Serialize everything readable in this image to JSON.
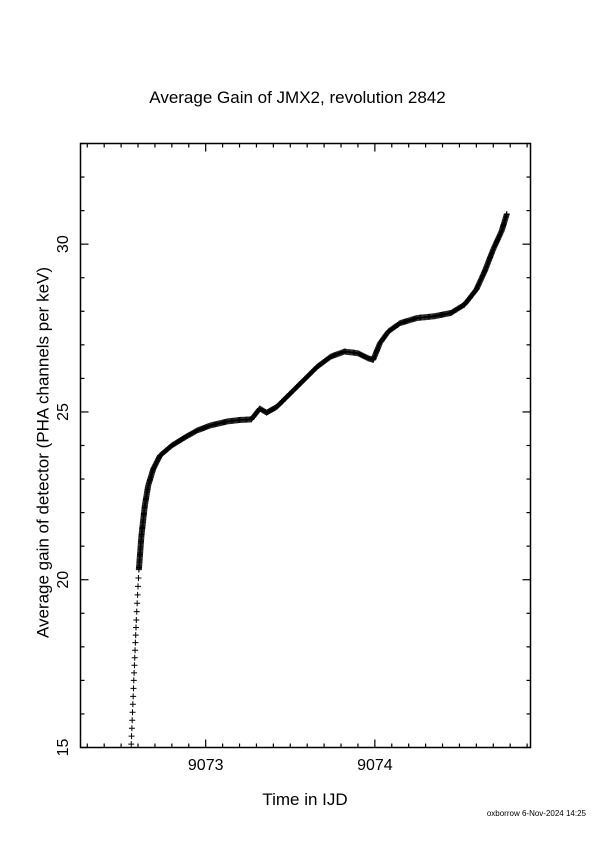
{
  "chart_data": {
    "type": "scatter",
    "title": "Average Gain of JMX2, revolution 2842",
    "xlabel": "Time in IJD",
    "ylabel": "Average gain of detector (PHA channels per keV)",
    "xlim": [
      9072.26,
      9074.92
    ],
    "ylim": [
      15,
      33
    ],
    "xticks": [
      9073,
      9074
    ],
    "yticks": [
      15,
      20,
      25,
      30
    ],
    "grid": false,
    "marker": "+",
    "marker_color": "#000000",
    "series": [
      {
        "points": [
          [
            9072.56,
            15.1
          ],
          [
            9072.575,
            17.0
          ],
          [
            9072.59,
            18.8
          ],
          [
            9072.605,
            20.3
          ],
          [
            9072.62,
            21.3
          ],
          [
            9072.64,
            22.2
          ],
          [
            9072.66,
            22.8
          ],
          [
            9072.69,
            23.3
          ],
          [
            9072.73,
            23.7
          ],
          [
            9072.8,
            24.0
          ],
          [
            9072.88,
            24.25
          ],
          [
            9072.95,
            24.45
          ],
          [
            9073.03,
            24.6
          ],
          [
            9073.13,
            24.72
          ],
          [
            9073.2,
            24.76
          ],
          [
            9073.27,
            24.78
          ],
          [
            9073.32,
            25.1
          ],
          [
            9073.36,
            24.98
          ],
          [
            9073.42,
            25.15
          ],
          [
            9073.5,
            25.55
          ],
          [
            9073.58,
            25.95
          ],
          [
            9073.66,
            26.35
          ],
          [
            9073.74,
            26.65
          ],
          [
            9073.82,
            26.8
          ],
          [
            9073.9,
            26.75
          ],
          [
            9073.96,
            26.6
          ],
          [
            9073.99,
            26.55
          ],
          [
            9074.03,
            27.05
          ],
          [
            9074.08,
            27.4
          ],
          [
            9074.15,
            27.65
          ],
          [
            9074.25,
            27.8
          ],
          [
            9074.35,
            27.85
          ],
          [
            9074.45,
            27.95
          ],
          [
            9074.53,
            28.2
          ],
          [
            9074.6,
            28.65
          ],
          [
            9074.65,
            29.2
          ],
          [
            9074.7,
            29.85
          ],
          [
            9074.75,
            30.4
          ],
          [
            9074.78,
            30.9
          ]
        ]
      }
    ]
  },
  "footer": {
    "user": "oxborrow",
    "date": "6-Nov-2024 14:25"
  }
}
